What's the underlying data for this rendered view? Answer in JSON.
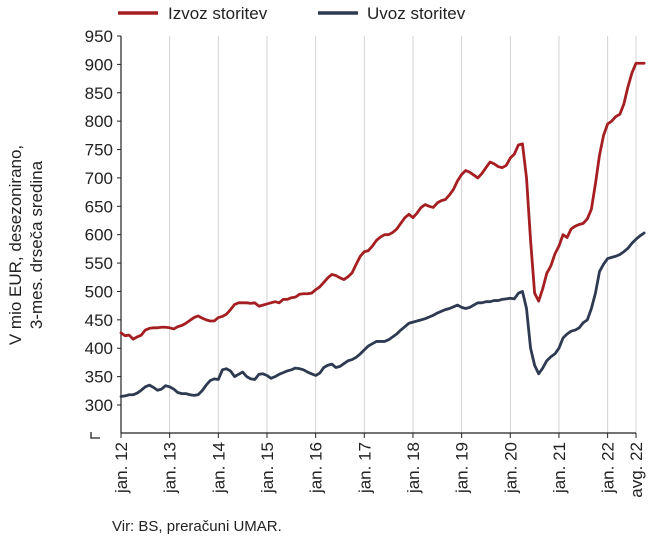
{
  "chart_data": {
    "type": "line",
    "ylabel_line1": "V mio EUR, desezonirano,",
    "ylabel_line2": "3-mes. drseča sredina",
    "ylim": [
      300,
      950
    ],
    "yticks": [
      300,
      350,
      400,
      450,
      500,
      550,
      600,
      650,
      700,
      750,
      800,
      850,
      900,
      950
    ],
    "y_axis_break": true,
    "grid": "vertical",
    "legend_position": "top",
    "x_start": "2012-01",
    "x_end": "2022-08",
    "xtick_labels": [
      "jan. 12",
      "jan. 13",
      "jan. 14",
      "jan. 15",
      "jan. 16",
      "jan. 17",
      "jan. 18",
      "jan. 19",
      "jan. 20",
      "jan. 21",
      "jan. 22",
      "avg. 22"
    ],
    "series": [
      {
        "name": "Izvoz storitev",
        "color": "#a51e22",
        "values": [
          427,
          422,
          423,
          416,
          420,
          423,
          432,
          435,
          436,
          436,
          437,
          437,
          436,
          434,
          438,
          440,
          444,
          449,
          454,
          457,
          453,
          450,
          448,
          448,
          454,
          456,
          460,
          468,
          477,
          480,
          480,
          480,
          479,
          480,
          474,
          476,
          478,
          480,
          482,
          480,
          486,
          486,
          489,
          490,
          495,
          496,
          496,
          497,
          503,
          508,
          516,
          524,
          530,
          528,
          524,
          521,
          526,
          533,
          548,
          562,
          570,
          572,
          580,
          590,
          596,
          600,
          600,
          604,
          610,
          620,
          630,
          636,
          630,
          638,
          648,
          653,
          650,
          648,
          656,
          660,
          662,
          670,
          680,
          695,
          706,
          713,
          710,
          705,
          700,
          708,
          718,
          728,
          725,
          720,
          718,
          722,
          735,
          742,
          758,
          760,
          700,
          590,
          497,
          483,
          505,
          532,
          545,
          566,
          580,
          600,
          595,
          610,
          615,
          618,
          620,
          628,
          645,
          690,
          740,
          775,
          795,
          800,
          808,
          812,
          830,
          860,
          885,
          902,
          902,
          902
        ]
      },
      {
        "name": "Uvoz storitev",
        "color": "#2e3a50",
        "values": [
          315,
          316,
          318,
          318,
          321,
          326,
          332,
          335,
          331,
          326,
          328,
          334,
          332,
          328,
          322,
          320,
          320,
          318,
          317,
          318,
          325,
          335,
          343,
          346,
          345,
          362,
          364,
          360,
          350,
          354,
          358,
          350,
          346,
          345,
          354,
          355,
          352,
          347,
          350,
          354,
          357,
          360,
          362,
          365,
          364,
          362,
          358,
          355,
          352,
          356,
          366,
          370,
          372,
          366,
          368,
          373,
          378,
          380,
          384,
          390,
          397,
          404,
          408,
          412,
          412,
          412,
          415,
          420,
          425,
          432,
          438,
          444,
          446,
          448,
          450,
          452,
          455,
          458,
          462,
          465,
          468,
          470,
          473,
          476,
          472,
          470,
          472,
          476,
          480,
          480,
          482,
          482,
          484,
          484,
          486,
          487,
          488,
          487,
          497,
          500,
          470,
          400,
          370,
          355,
          365,
          378,
          385,
          390,
          400,
          418,
          425,
          430,
          432,
          436,
          445,
          450,
          470,
          497,
          535,
          548,
          558,
          560,
          562,
          565,
          570,
          576,
          585,
          592,
          598,
          603
        ]
      }
    ]
  },
  "source": "Vir: BS, preračuni UMAR."
}
